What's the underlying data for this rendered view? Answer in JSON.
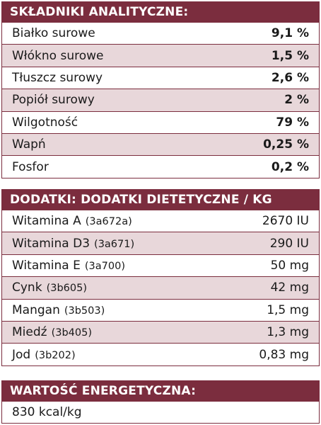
{
  "analytical": {
    "title": "SKŁADNIKI ANALITYCZNE:",
    "rows": [
      {
        "label": "Białko surowe",
        "value": "9,1 %"
      },
      {
        "label": "Włókno surowe",
        "value": "1,5 %"
      },
      {
        "label": "Tłuszcz surowy",
        "value": "2,6 %"
      },
      {
        "label": "Popiół surowy",
        "value": "2 %"
      },
      {
        "label": "Wilgotność",
        "value": "79 %"
      },
      {
        "label": "Wapń",
        "value": "0,25 %"
      },
      {
        "label": "Fosfor",
        "value": "0,2 %"
      }
    ]
  },
  "additives": {
    "title": "DODATKI: DODATKI DIETETYCZNE / KG",
    "rows": [
      {
        "label": "Witamina A",
        "code": "(3a672a)",
        "value": "2670 IU"
      },
      {
        "label": "Witamina D3",
        "code": "(3a671)",
        "value": "290 IU"
      },
      {
        "label": "Witamina E",
        "code": "(3a700)",
        "value": "50 mg"
      },
      {
        "label": "Cynk",
        "code": "(3b605)",
        "value": "42 mg"
      },
      {
        "label": "Mangan",
        "code": "(3b503)",
        "value": "1,5 mg"
      },
      {
        "label": "Miedź",
        "code": "(3b405)",
        "value": "1,3 mg"
      },
      {
        "label": "Jod",
        "code": "(3b202)",
        "value": "0,83 mg"
      }
    ]
  },
  "energy": {
    "title": "WARTOŚĆ ENERGETYCZNA:",
    "value": "830 kcal/kg"
  },
  "colors": {
    "header_bg": "#7b2d3e",
    "header_text": "#ffffff",
    "alt_row_bg": "#e8d7da",
    "border": "#7b2d3e"
  }
}
